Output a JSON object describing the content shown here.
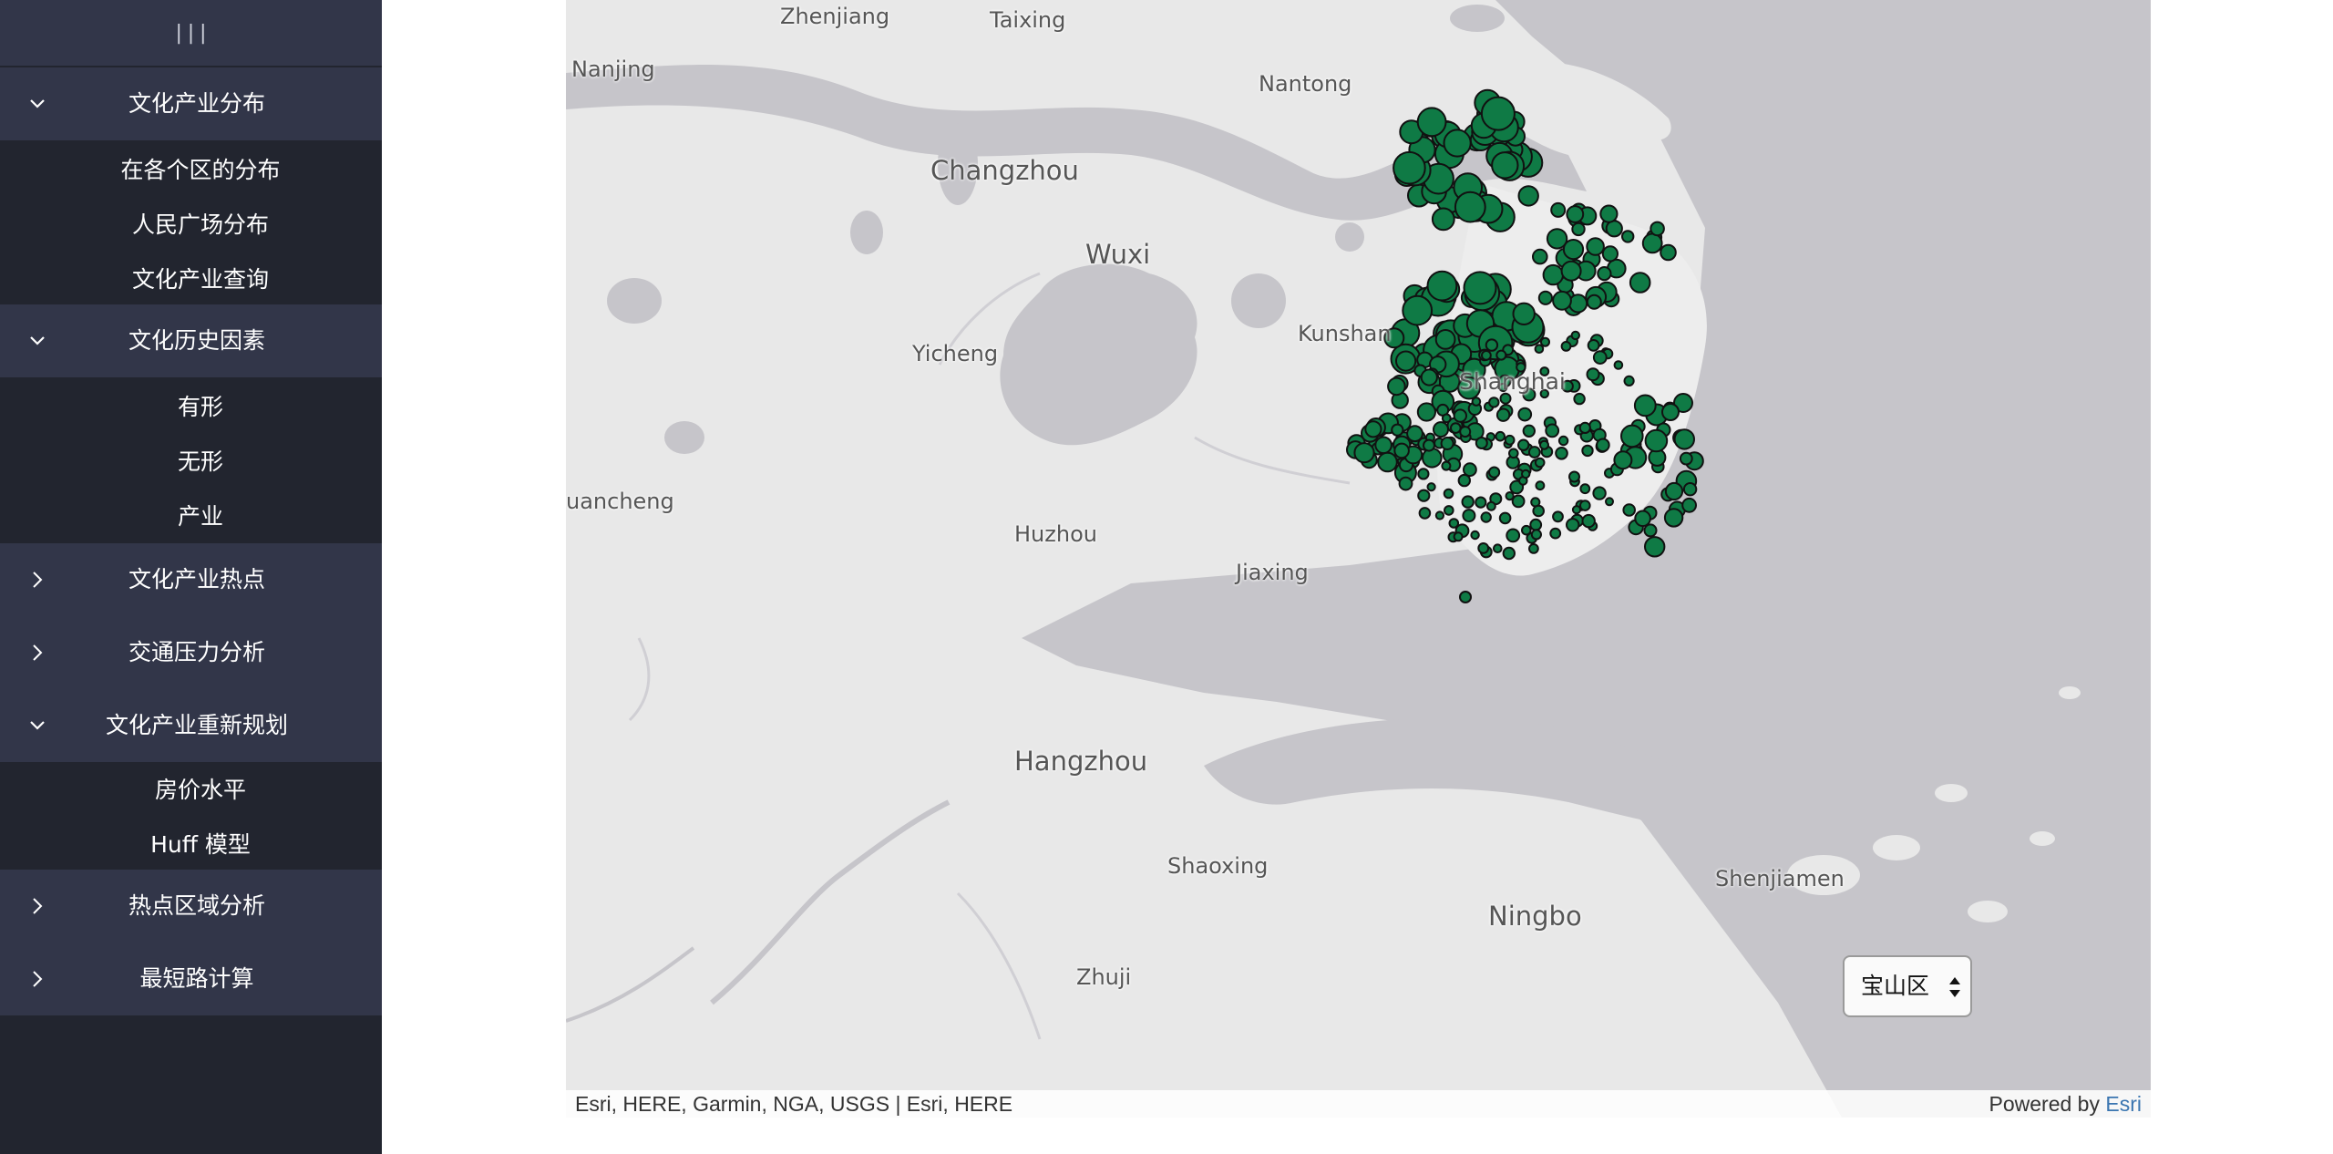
{
  "sidebar": {
    "collapse_glyph": "|||",
    "groups": [
      {
        "label": "文化产业分布",
        "expanded": true,
        "icon": "chevron-down-icon",
        "items": [
          "在各个区的分布",
          "人民广场分布",
          "文化产业查询"
        ]
      },
      {
        "label": "文化历史因素",
        "expanded": true,
        "icon": "chevron-down-icon",
        "items": [
          "有形",
          "无形",
          "产业"
        ]
      },
      {
        "label": "文化产业热点",
        "expanded": false,
        "icon": "chevron-right-icon",
        "items": []
      },
      {
        "label": "交通压力分析",
        "expanded": false,
        "icon": "chevron-right-icon",
        "items": []
      },
      {
        "label": "文化产业重新规划",
        "expanded": true,
        "icon": "chevron-down-icon",
        "items": [
          "房价水平",
          "Huff 模型"
        ]
      },
      {
        "label": "热点区域分析",
        "expanded": false,
        "icon": "chevron-right-icon",
        "items": []
      },
      {
        "label": "最短路计算",
        "expanded": false,
        "icon": "chevron-right-icon",
        "items": []
      }
    ]
  },
  "map": {
    "place_labels": [
      "Zhenjiang",
      "Taixing",
      "Nanjing",
      "Nantong",
      "Changzhou",
      "Wuxi",
      "Kunshan",
      "Yicheng",
      "Shanghai",
      "uancheng",
      "Huzhou",
      "Jiaxing",
      "Hangzhou",
      "Shaoxing",
      "Shenjiamen",
      "Ningbo",
      "Zhuji"
    ],
    "marker_color": "#0f7a45",
    "attribution": "Esri, HERE, Garmin, NGA, USGS | Esri, HERE",
    "powered_by_prefix": "Powered by ",
    "powered_by_brand": "Esri",
    "district_select": {
      "selected": "宝山区"
    }
  }
}
